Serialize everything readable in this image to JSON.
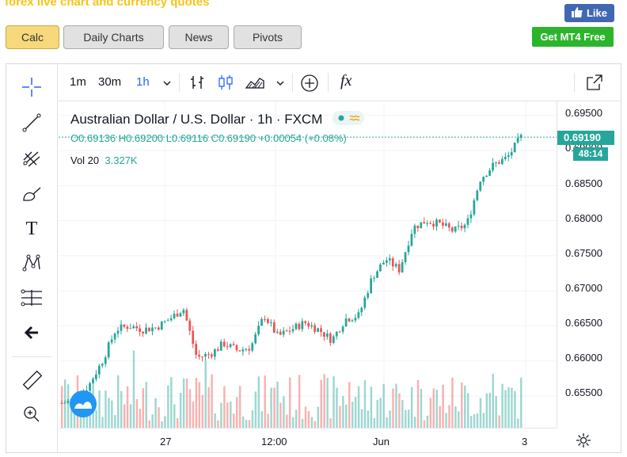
{
  "header": {
    "site_title": "forex live chart and currency quotes",
    "like_label": "Like",
    "mt4_label": "Get MT4 Free"
  },
  "nav_tabs": [
    {
      "label": "Calc",
      "active": true
    },
    {
      "label": "Daily Charts",
      "active": false
    },
    {
      "label": "News",
      "active": false
    },
    {
      "label": "Pivots",
      "active": false
    }
  ],
  "toolbar": {
    "timeframes": [
      "1m",
      "30m",
      "1h"
    ],
    "active_timeframe": "1h",
    "icons": [
      "chevron-down-icon",
      "bar-chart-icon",
      "candlestick-icon",
      "area-chart-icon",
      "add-indicator-icon",
      "function-icon",
      "fullscreen-icon"
    ],
    "fx_label": "fx"
  },
  "left_tools": [
    "crosshair-icon",
    "trendline-icon",
    "pitchfork-icon",
    "brush-icon",
    "text-icon",
    "pattern-icon",
    "position-icon",
    "back-arrow-icon",
    "ruler-icon",
    "zoom-icon"
  ],
  "text_tool_label": "T",
  "legend": {
    "symbol": "Australian Dollar / U.S. Dollar · 1h · FXCM",
    "ohlc": "O0.69136  H0.69200  L0.69116  C0.69190  +0.00054 (+0.08%)",
    "volume_label": "Vol 20",
    "volume_value": "3.327K"
  },
  "price_axis": {
    "labels": [
      "0.69500",
      "0.69000",
      "0.68500",
      "0.68000",
      "0.67500",
      "0.67000",
      "0.66500",
      "0.66000",
      "0.65500"
    ],
    "current_price": "0.69190",
    "countdown": "48:14"
  },
  "time_axis": {
    "labels": [
      "27",
      "12:00",
      "Jun",
      "3"
    ]
  },
  "colors": {
    "up": "#26a69a",
    "down": "#ef5350",
    "accent": "#2962ff"
  },
  "chart_data": {
    "type": "candlestick",
    "ylim": [
      0.6505,
      0.697
    ],
    "x": [
      "27",
      "12:00",
      "Jun",
      "3"
    ],
    "close_path": [
      0.654,
      0.6545,
      0.6565,
      0.66,
      0.6645,
      0.665,
      0.6645,
      0.6648,
      0.666,
      0.6675,
      0.6605,
      0.661,
      0.6625,
      0.6615,
      0.662,
      0.6665,
      0.6635,
      0.6645,
      0.6655,
      0.6645,
      0.663,
      0.666,
      0.6665,
      0.672,
      0.6745,
      0.673,
      0.679,
      0.68,
      0.6795,
      0.6785,
      0.6795,
      0.686,
      0.688,
      0.689,
      0.6919
    ]
  }
}
